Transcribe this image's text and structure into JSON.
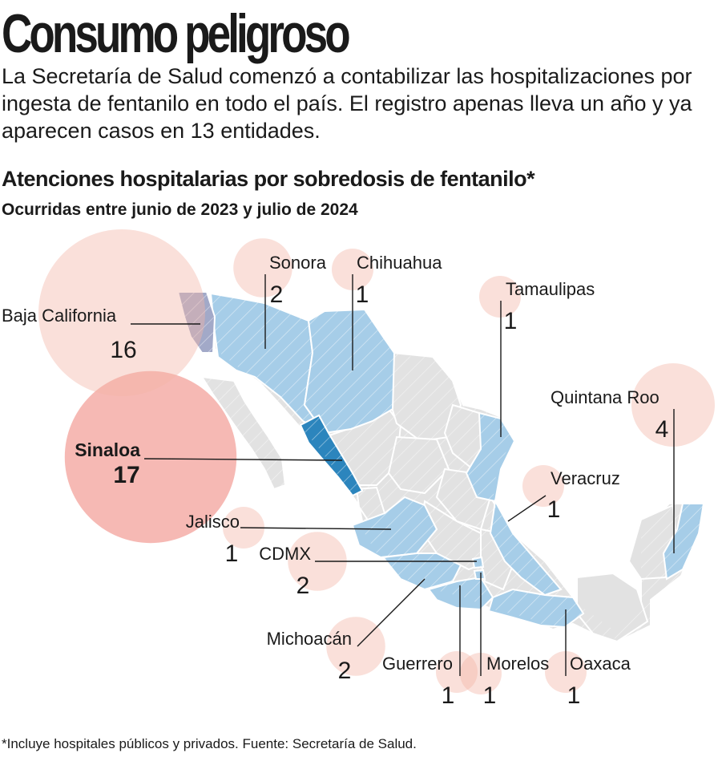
{
  "header": {
    "title": "Consumo peligroso",
    "intro": "La Secretaría de Salud comenzó a contabilizar las hospitalizaciones por ingesta de fentanilo en todo el país. El registro apenas lleva un año y ya aparecen casos en 13 entidades."
  },
  "chart": {
    "title": "Atenciones hospitalarias por sobredosis de fentanilo*",
    "subtitle": "Ocurridas entre junio de 2023 y julio de 2024"
  },
  "footnote": "*Incluye hospitales públicos y privados. Fuente: Secretaría de Salud.",
  "colors": {
    "bubble": "#f3b4a8",
    "bubble_highlight": "#ee7f77",
    "state_with_cases": "#a6cde8",
    "state_without_cases": "#e2e2e2",
    "state_max": "#2c85bd",
    "state_baja": "#a2a9c8",
    "leader_line": "#1a1a1a"
  },
  "map_data": {
    "type": "bubble-map",
    "region": "México",
    "states": [
      {
        "name": "Sinaloa",
        "value": 17,
        "highlight": true
      },
      {
        "name": "Baja California",
        "value": 16
      },
      {
        "name": "Quintana Roo",
        "value": 4
      },
      {
        "name": "Sonora",
        "value": 2
      },
      {
        "name": "CDMX",
        "value": 2
      },
      {
        "name": "Michoacán",
        "value": 2
      },
      {
        "name": "Chihuahua",
        "value": 1
      },
      {
        "name": "Tamaulipas",
        "value": 1
      },
      {
        "name": "Veracruz",
        "value": 1
      },
      {
        "name": "Jalisco",
        "value": 1
      },
      {
        "name": "Guerrero",
        "value": 1
      },
      {
        "name": "Morelos",
        "value": 1
      },
      {
        "name": "Oaxaca",
        "value": 1
      }
    ]
  }
}
